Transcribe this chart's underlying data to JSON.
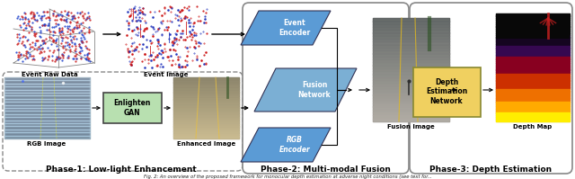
{
  "figure_width": 6.4,
  "figure_height": 1.99,
  "dpi": 100,
  "bg_color": "#ffffff",
  "caption": "Fig. 2: An overview of the proposed framework for monocular depth estimation at adverse night conditions (see text for...",
  "phase1_label": "Phase-1: Low-light Enhancement",
  "phase2_label": "Phase-2: Multi-modal Fusion",
  "phase3_label": "Phase-3: Depth Estimation",
  "enlighten_box_color": "#b8e0b0",
  "encoder_box_color": "#5b9bd5",
  "fusion_box_color": "#7bafd4",
  "depth_net_box_color": "#f0d060",
  "text_color": "#000000",
  "phase_label_color": "#000000",
  "node_labels": {
    "event_raw": "Event Raw Data",
    "event_image": "Event Image",
    "rgb_image": "RGB Image",
    "enhanced_image": "Enhanced Image",
    "event_encoder": "Event\nEncoder",
    "rgb_encoder": "RGB\nEncoder",
    "fusion_network": "Fusion\nNetwork",
    "fusion_image": "Fusion Image",
    "depth_network": "Depth\nEstimation\nNetwork",
    "depth_map": "Depth Map",
    "enlighten_gan": "Enlighten\nGAN"
  }
}
